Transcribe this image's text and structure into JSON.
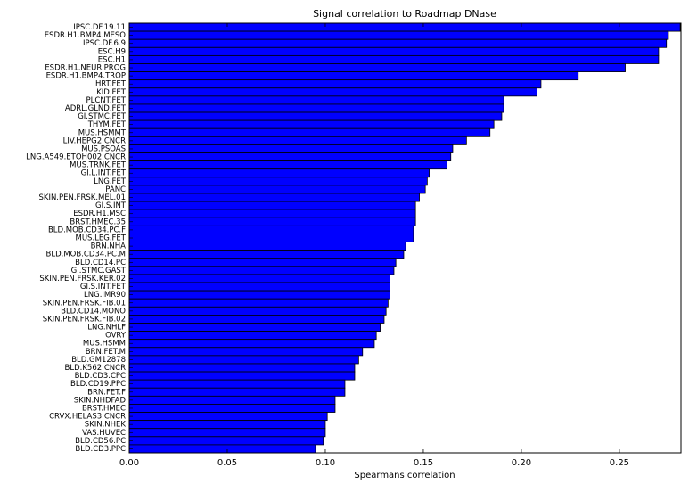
{
  "chart_data": {
    "type": "barh",
    "title": "Signal correlation to Roadmap DNase",
    "x_label": "Spearmans correlation",
    "categories": [
      "IPSC.DF.19.11",
      "ESDR.H1.BMP4.MESO",
      "IPSC.DF.6.9",
      "ESC.H9",
      "ESC.H1",
      "ESDR.H1.NEUR.PROG",
      "ESDR.H1.BMP4.TROP",
      "HRT.FET",
      "KID.FET",
      "PLCNT.FET",
      "ADRL.GLND.FET",
      "GI.STMC.FET",
      "THYM.FET",
      "MUS.HSMMT",
      "LIV.HEPG2.CNCR",
      "MUS.PSOAS",
      "LNG.A549.ETOH002.CNCR",
      "MUS.TRNK.FET",
      "GI.L.INT.FET",
      "LNG.FET",
      "PANC",
      "SKIN.PEN.FRSK.MEL.01",
      "GI.S.INT",
      "ESDR.H1.MSC",
      "BRST.HMEC.35",
      "BLD.MOB.CD34.PC.F",
      "MUS.LEG.FET",
      "BRN.NHA",
      "BLD.MOB.CD34.PC.M",
      "BLD.CD14.PC",
      "GI.STMC.GAST",
      "SKIN.PEN.FRSK.KER.02",
      "GI.S.INT.FET",
      "LNG.IMR90",
      "SKIN.PEN.FRSK.FIB.01",
      "BLD.CD14.MONO",
      "SKIN.PEN.FRSK.FIB.02",
      "LNG.NHLF",
      "OVRY",
      "MUS.HSMM",
      "BRN.FET.M",
      "BLD.GM12878",
      "BLD.K562.CNCR",
      "BLD.CD3.CPC",
      "BLD.CD19.PPC",
      "BRN.FET.F",
      "SKIN.NHDFAD",
      "BRST.HMEC",
      "CRVX.HELAS3.CNCR",
      "SKIN.NHEK",
      "VAS.HUVEC",
      "BLD.CD56.PC",
      "BLD.CD3.PPC"
    ],
    "values": [
      0.281,
      0.275,
      0.274,
      0.27,
      0.27,
      0.253,
      0.229,
      0.21,
      0.208,
      0.191,
      0.191,
      0.19,
      0.186,
      0.184,
      0.172,
      0.165,
      0.164,
      0.162,
      0.153,
      0.152,
      0.151,
      0.148,
      0.146,
      0.146,
      0.146,
      0.145,
      0.145,
      0.141,
      0.14,
      0.136,
      0.135,
      0.133,
      0.133,
      0.133,
      0.132,
      0.131,
      0.13,
      0.128,
      0.126,
      0.125,
      0.119,
      0.117,
      0.115,
      0.115,
      0.11,
      0.11,
      0.105,
      0.105,
      0.101,
      0.1,
      0.1,
      0.099,
      0.095
    ],
    "color": "#0000ff",
    "xlim": [
      0,
      0.2814
    ],
    "xticks": [
      {
        "value": 0,
        "label": "0.00"
      },
      {
        "value": 0.05,
        "label": "0.05"
      },
      {
        "value": 0.1,
        "label": "0.10"
      },
      {
        "value": 0.15,
        "label": "0.15"
      },
      {
        "value": 0.2,
        "label": "0.20"
      },
      {
        "value": 0.25,
        "label": "0.25"
      }
    ]
  }
}
